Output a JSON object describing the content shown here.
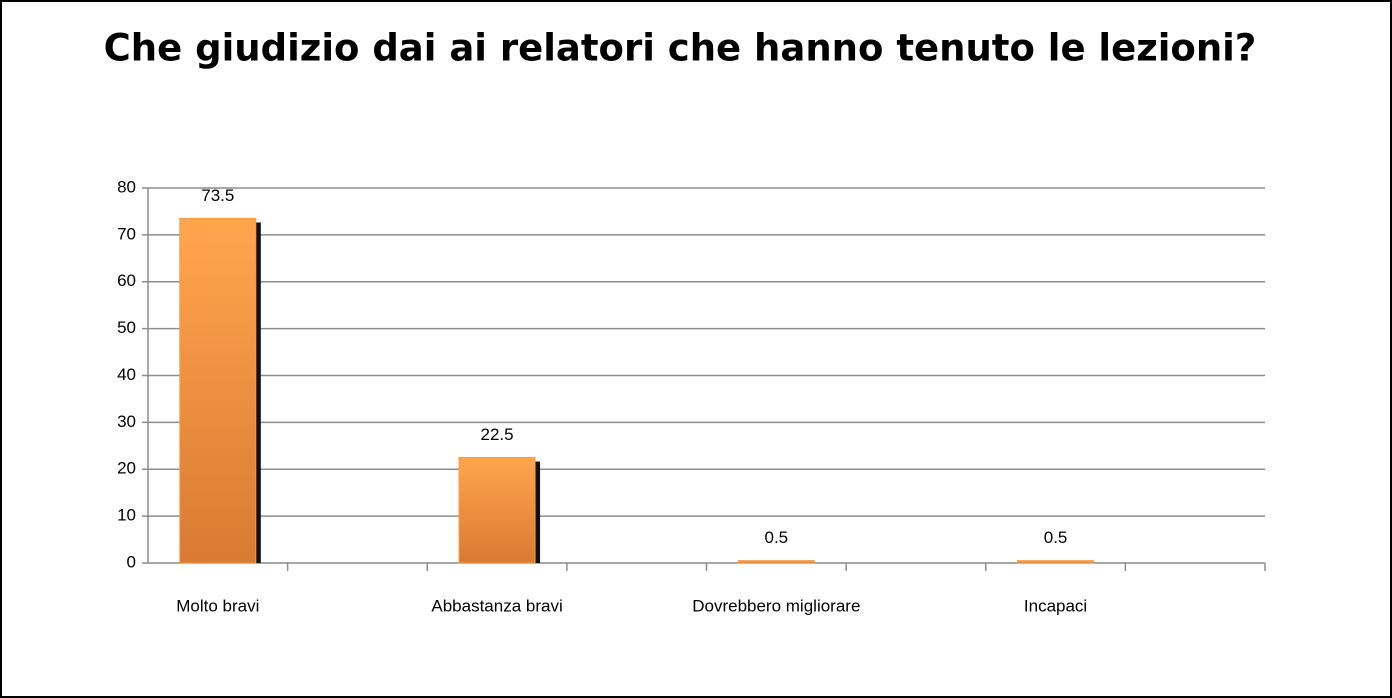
{
  "chart_data": {
    "type": "bar",
    "title": "Che giudizio dai ai relatori che hanno tenuto le lezioni?",
    "categories": [
      "Molto bravi",
      null,
      "Abbastanza  bravi",
      null,
      "Dovrebbero migliorare",
      null,
      "Incapaci",
      null
    ],
    "values": [
      73.5,
      null,
      22.5,
      null,
      0.5,
      null,
      0.5,
      null
    ],
    "color": "#f79a45",
    "ylim": [
      0,
      80
    ],
    "yticks": [
      0,
      10,
      20,
      30,
      40,
      50,
      60,
      70,
      80
    ],
    "grid": true
  }
}
